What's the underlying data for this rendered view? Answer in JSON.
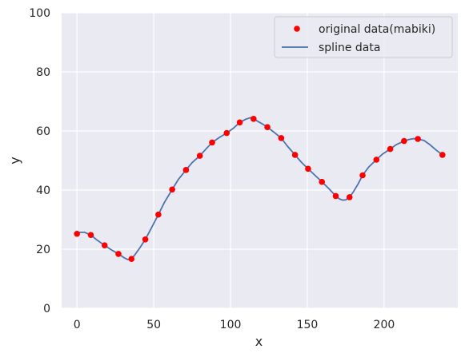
{
  "chart_data": {
    "type": "line",
    "xlabel": "x",
    "ylabel": "y",
    "xlim": [
      -10,
      248
    ],
    "ylim": [
      0,
      100
    ],
    "x_ticks": [
      0,
      50,
      100,
      150,
      200
    ],
    "y_ticks": [
      0,
      20,
      40,
      60,
      80,
      100
    ],
    "x_tick_labels": [
      "0",
      "50",
      "100",
      "150",
      "200"
    ],
    "y_tick_labels": [
      "0",
      "20",
      "40",
      "60",
      "80",
      "100"
    ],
    "grid": true,
    "legend_position": "top-right",
    "series": [
      {
        "name": "original data(mabiki)",
        "type": "scatter",
        "color": "#ff0000",
        "x": [
          0,
          9,
          18,
          27,
          35.5,
          44.5,
          53,
          62,
          71,
          80,
          88,
          97.5,
          106,
          115,
          124,
          133,
          142,
          150.5,
          159.5,
          168.5,
          177.5,
          186,
          195,
          204,
          213,
          222,
          238
        ],
        "y": [
          25.2,
          24.8,
          21.3,
          18.4,
          16.7,
          23.3,
          31.7,
          40.2,
          46.8,
          51.6,
          56.1,
          59.3,
          62.9,
          64.1,
          61.3,
          57.6,
          51.9,
          47.2,
          42.8,
          38.0,
          37.6,
          45.0,
          50.3,
          53.9,
          56.6,
          57.3,
          51.9
        ]
      },
      {
        "name": "spline data",
        "type": "line",
        "color": "#4c72b0",
        "x": [
          0,
          2,
          5,
          9,
          13,
          18,
          22,
          27,
          31,
          33,
          35.5,
          38,
          41,
          44.5,
          48,
          53,
          57,
          62,
          66,
          71,
          75,
          80,
          84,
          88,
          93,
          97.5,
          102,
          106,
          110,
          113,
          115,
          118,
          121,
          124,
          128,
          133,
          137,
          142,
          146,
          150.5,
          155,
          159.5,
          164,
          168.5,
          171,
          173,
          175,
          177.5,
          180,
          183,
          186,
          190,
          195,
          199,
          204,
          208,
          213,
          216,
          219,
          222,
          226,
          230,
          234,
          238
        ],
        "y": [
          25.2,
          25.7,
          25.7,
          24.8,
          23.1,
          21.3,
          19.9,
          18.4,
          17.0,
          16.5,
          16.7,
          18.3,
          20.5,
          23.3,
          26.7,
          31.7,
          35.9,
          40.2,
          43.6,
          46.8,
          49.3,
          51.6,
          53.9,
          56.1,
          57.9,
          59.3,
          61.0,
          62.9,
          64.0,
          64.5,
          64.1,
          63.2,
          62.3,
          61.3,
          59.7,
          57.6,
          54.9,
          51.9,
          49.5,
          47.2,
          45.0,
          42.8,
          40.5,
          38.0,
          37.0,
          36.6,
          36.7,
          37.6,
          39.4,
          42.0,
          45.0,
          47.8,
          50.3,
          52.2,
          53.9,
          55.4,
          56.6,
          57.1,
          57.4,
          57.3,
          56.8,
          55.3,
          53.5,
          51.9
        ]
      }
    ]
  }
}
